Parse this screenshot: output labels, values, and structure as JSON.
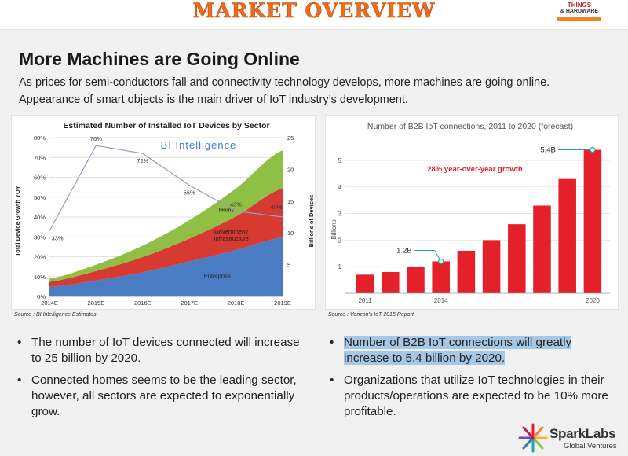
{
  "header": {
    "title": "MARKET OVERVIEW",
    "event_logo": {
      "line1": "THINGS",
      "line2": "& HARDWARE"
    }
  },
  "heading": "More Machines are Going Online",
  "subtitle": [
    "As prices for semi-conductors fall and connectivity technology develops, more machines are going online.",
    "Appearance of smart objects is the main driver of IoT industry’s development."
  ],
  "left_chart": {
    "source": "Source : BI Intelligence Estimates"
  },
  "right_chart": {
    "source": "Source : Verizon's IoT 2015 Report"
  },
  "left_bullets": [
    "The number of IoT devices connected will increase to 25 billion by 2020.",
    "Connected homes seems to be the leading sector, however, all sectors are expected to exponentially grow."
  ],
  "right_bullets": [
    "Number of B2B IoT connections will greatly increase to 5.4 billion by 2020.",
    "Organizations that utilize IoT technologies in their products/operations are expected to be 10% more profitable."
  ],
  "footer": {
    "brand": "SparkLabs",
    "brand_sub": "Global Ventures"
  },
  "colors": {
    "title_orange": "#f26b1d",
    "bar_red": "#e4212b",
    "enterprise": "#4a7cc4",
    "government": "#d63a31",
    "home": "#8fbf44",
    "highlight": "#a5c8e6"
  },
  "chart_data": [
    {
      "type": "area",
      "title": "Estimated Number of Installed IoT Devices by Sector",
      "watermark": "BI Intelligence",
      "ylabel": "Total Device Growth YOY",
      "y2label": "Billions of Devices",
      "categories": [
        "2014E",
        "2015E",
        "2016E",
        "2017E",
        "2018E",
        "2019E"
      ],
      "y_ticks": [
        "0%",
        "10%",
        "20%",
        "30%",
        "40%",
        "50%",
        "60%",
        "70%",
        "80%"
      ],
      "y2_ticks": [
        "5",
        "10",
        "15",
        "20",
        "25"
      ],
      "ylim": [
        0,
        80
      ],
      "y2lim": [
        0,
        25
      ],
      "stacked": true,
      "series": [
        {
          "name": "Enterprise",
          "values": [
            1.5,
            2.5,
            3.8,
            5.5,
            7.3,
            9.3
          ],
          "color": "#4a7cc4"
        },
        {
          "name": "Government/ Infrastructure",
          "values": [
            0.8,
            1.5,
            2.4,
            3.6,
            5.3,
            7.7
          ],
          "color": "#d63a31"
        },
        {
          "name": "Home",
          "values": [
            0.5,
            1.0,
            1.8,
            2.9,
            4.4,
            6.0
          ],
          "color": "#8fbf44"
        }
      ],
      "growth_line": {
        "values": [
          33,
          76,
          72,
          56,
          43,
          40
        ],
        "labels": [
          "33%",
          "76%",
          "72%",
          "56%",
          "43%",
          "40%"
        ]
      }
    },
    {
      "type": "bar",
      "title": "Number of B2B IoT connections, 2011 to 2020 (forecast)",
      "ylabel": "Billions",
      "categories": [
        "2011",
        "2012",
        "2013",
        "2014",
        "2015",
        "2016",
        "2017",
        "2018",
        "2019",
        "2020"
      ],
      "x_tick_labels": [
        "2011",
        "2014",
        "2020"
      ],
      "values": [
        0.7,
        0.8,
        1.0,
        1.2,
        1.6,
        2.0,
        2.6,
        3.3,
        4.3,
        5.4
      ],
      "y_ticks": [
        "1",
        "2",
        "3",
        "4",
        "5"
      ],
      "ylim": [
        0,
        5.8
      ],
      "annotations": [
        "1.2B",
        "5.4B",
        "28% year-over-year growth"
      ]
    }
  ]
}
